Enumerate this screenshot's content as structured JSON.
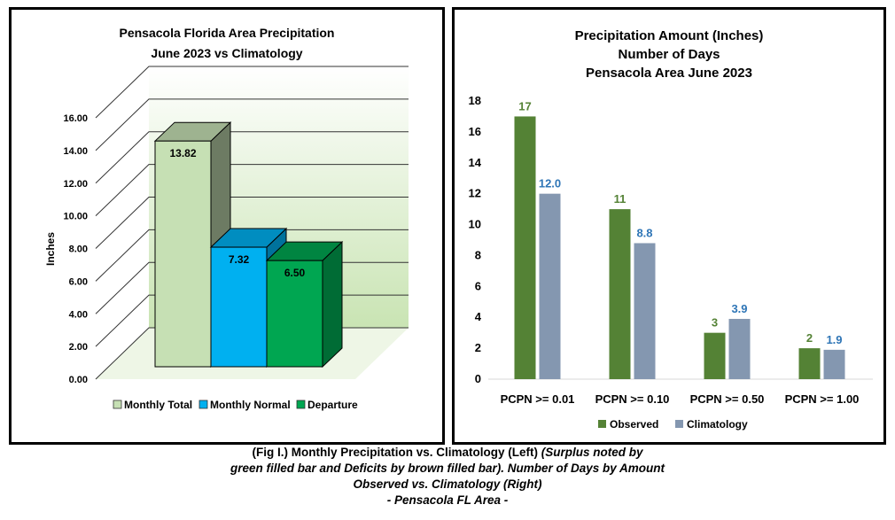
{
  "chart_data": [
    {
      "type": "bar",
      "style": "3d",
      "title": "Pensacola Florida Area Precipitation",
      "subtitle": "June 2023 vs Climatology",
      "ylabel": "Inches",
      "xlabel": "",
      "ylim": [
        0,
        16
      ],
      "yticks": [
        "0.00",
        "2.00",
        "4.00",
        "6.00",
        "8.00",
        "10.00",
        "12.00",
        "14.00",
        "16.00"
      ],
      "grid": true,
      "legend_position": "bottom",
      "series": [
        {
          "name": "Monthly Total",
          "value": 13.82,
          "label": "13.82",
          "color": "#c6e0b4"
        },
        {
          "name": "Monthly Normal",
          "value": 7.32,
          "label": "7.32",
          "color": "#00b0f0"
        },
        {
          "name": "Departure",
          "value": 6.5,
          "label": "6.50",
          "color": "#00a651"
        }
      ]
    },
    {
      "type": "bar",
      "title_lines": [
        "Precipitation Amount (Inches)",
        "Number of Days",
        "Pensacola Area June 2023"
      ],
      "xlabel": "",
      "ylabel": "",
      "ylim": [
        0,
        18
      ],
      "yticks": [
        "0",
        "2",
        "4",
        "6",
        "8",
        "10",
        "12",
        "14",
        "16",
        "18"
      ],
      "grid": false,
      "legend_position": "bottom",
      "categories": [
        "PCPN >= 0.01",
        "PCPN >= 0.10",
        "PCPN >= 0.50",
        "PCPN >= 1.00"
      ],
      "series": [
        {
          "name": "Observed",
          "values": [
            17,
            11,
            3,
            2
          ],
          "labels": [
            "17",
            "11",
            "3",
            "2"
          ],
          "color": "#548235"
        },
        {
          "name": "Climatology",
          "values": [
            12.0,
            8.8,
            3.9,
            1.9
          ],
          "labels": [
            "12.0",
            "8.8",
            "3.9",
            "1.9"
          ],
          "color": "#8497b0"
        }
      ]
    }
  ],
  "caption": {
    "part1": "(Fig I.) Monthly Precipitation vs. Climatology (Left) ",
    "part2": "(Surplus noted by",
    "line2": "green filled bar and Deficits by brown filled bar). Number of Days by Amount",
    "line3": "Observed vs. Climatology (Right)",
    "line4": "- Pensacola FL Area -"
  }
}
